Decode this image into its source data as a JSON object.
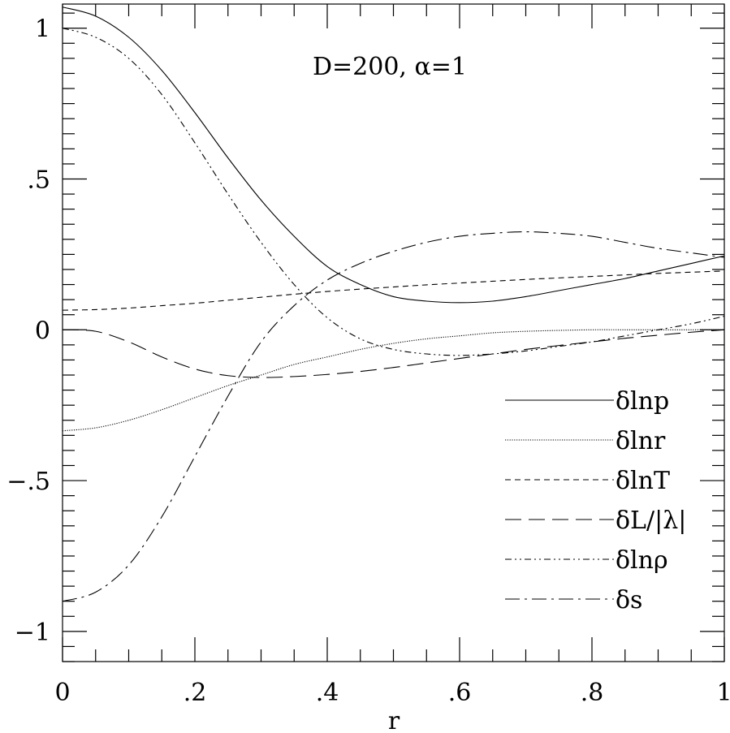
{
  "chart_data": {
    "type": "line",
    "annotation": "D=200, α=1",
    "xlabel": "r",
    "ylabel": "",
    "xlim": [
      0,
      1
    ],
    "ylim": [
      -1.1,
      1.08
    ],
    "grid": false,
    "legend_position": "lower-right",
    "x_ticks": [
      {
        "value": 0,
        "label": "0"
      },
      {
        "value": 0.2,
        "label": ".2"
      },
      {
        "value": 0.4,
        "label": ".4"
      },
      {
        "value": 0.6,
        "label": ".6"
      },
      {
        "value": 0.8,
        "label": ".8"
      },
      {
        "value": 1,
        "label": "1"
      }
    ],
    "y_ticks": [
      {
        "value": 1,
        "label": "1"
      },
      {
        "value": 0.5,
        "label": ".5"
      },
      {
        "value": 0,
        "label": "0"
      },
      {
        "value": -0.5,
        "label": "−.5"
      },
      {
        "value": -1,
        "label": "−1"
      }
    ],
    "x": [
      0,
      0.05,
      0.1,
      0.15,
      0.2,
      0.25,
      0.3,
      0.35,
      0.4,
      0.45,
      0.5,
      0.55,
      0.6,
      0.65,
      0.7,
      0.75,
      0.8,
      0.85,
      0.9,
      0.95,
      1.0
    ],
    "series": [
      {
        "name": "δlnp",
        "style": "solid",
        "values": [
          1.07,
          1.04,
          0.97,
          0.86,
          0.72,
          0.57,
          0.43,
          0.31,
          0.21,
          0.15,
          0.11,
          0.095,
          0.09,
          0.095,
          0.11,
          0.13,
          0.15,
          0.17,
          0.195,
          0.22,
          0.245
        ]
      },
      {
        "name": "δlnr",
        "style": "dotted",
        "values": [
          -0.335,
          -0.325,
          -0.3,
          -0.265,
          -0.225,
          -0.185,
          -0.15,
          -0.115,
          -0.09,
          -0.065,
          -0.045,
          -0.03,
          -0.02,
          -0.01,
          -0.005,
          -0.002,
          0.0,
          0.0,
          0.0,
          0.0,
          0.0
        ]
      },
      {
        "name": "δlnT",
        "style": "short-dash",
        "values": [
          0.065,
          0.067,
          0.072,
          0.08,
          0.088,
          0.098,
          0.108,
          0.118,
          0.127,
          0.135,
          0.142,
          0.149,
          0.155,
          0.161,
          0.167,
          0.172,
          0.177,
          0.182,
          0.187,
          0.191,
          0.195
        ]
      },
      {
        "name": "δL/|λ|",
        "style": "long-dash",
        "values": [
          0.0,
          -0.005,
          -0.04,
          -0.09,
          -0.13,
          -0.152,
          -0.158,
          -0.155,
          -0.148,
          -0.138,
          -0.125,
          -0.11,
          -0.095,
          -0.08,
          -0.065,
          -0.052,
          -0.04,
          -0.028,
          -0.018,
          -0.008,
          0.0
        ]
      },
      {
        "name": "δlnρ",
        "style": "dash-dot-dot",
        "values": [
          1.0,
          0.97,
          0.9,
          0.78,
          0.62,
          0.45,
          0.29,
          0.15,
          0.04,
          -0.03,
          -0.065,
          -0.08,
          -0.085,
          -0.08,
          -0.07,
          -0.055,
          -0.04,
          -0.02,
          0.0,
          0.02,
          0.045
        ]
      },
      {
        "name": "δs",
        "style": "dash-dot",
        "values": [
          -0.9,
          -0.87,
          -0.78,
          -0.62,
          -0.42,
          -0.22,
          -0.04,
          0.08,
          0.165,
          0.22,
          0.26,
          0.29,
          0.31,
          0.32,
          0.325,
          0.32,
          0.31,
          0.29,
          0.27,
          0.255,
          0.24
        ]
      }
    ]
  }
}
